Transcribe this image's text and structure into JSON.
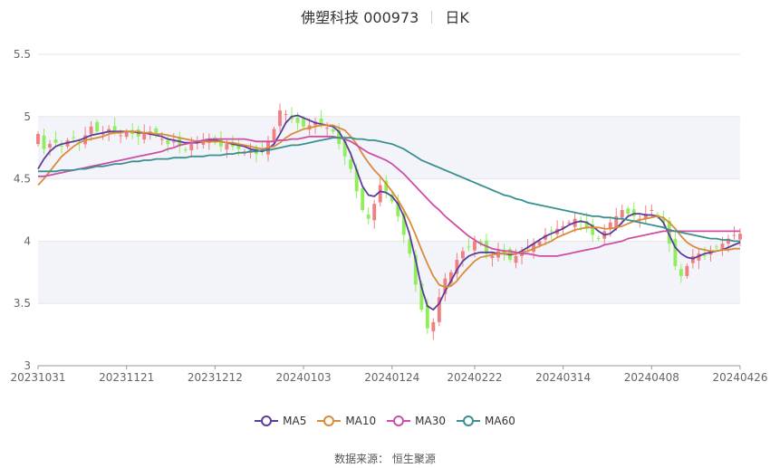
{
  "header": {
    "stock_name": "佛塑科技 000973",
    "period": "日K"
  },
  "footer": {
    "source": "数据来源： 恒生聚源"
  },
  "legend": [
    {
      "label": "MA5",
      "color": "#5b3c9b"
    },
    {
      "label": "MA10",
      "color": "#d98b3a"
    },
    {
      "label": "MA30",
      "color": "#cc4fa3"
    },
    {
      "label": "MA60",
      "color": "#3a8f8f"
    }
  ],
  "colors": {
    "up": "#f08080",
    "down": "#90ee5a",
    "grid": "#e6e6e6",
    "band": "#f3f4fa"
  },
  "chart_data": {
    "type": "candlestick",
    "y_ticks": [
      "3",
      "3.5",
      "4",
      "4.5",
      "5",
      "5.5"
    ],
    "ylim": [
      3,
      5.5
    ],
    "x_ticks": [
      "20231031",
      "20231121",
      "20231212",
      "20240103",
      "20240124",
      "20240222",
      "20240314",
      "20240408",
      "20240426"
    ],
    "n_days": 120,
    "x_tick_index": [
      0,
      15,
      30,
      45,
      60,
      74,
      89,
      104,
      119
    ],
    "closes": [
      4.86,
      4.74,
      4.78,
      4.79,
      4.76,
      4.81,
      4.83,
      4.79,
      4.85,
      4.92,
      4.88,
      4.87,
      4.9,
      4.88,
      4.85,
      4.88,
      4.86,
      4.84,
      4.87,
      4.88,
      4.85,
      4.82,
      4.78,
      4.8,
      4.76,
      4.73,
      4.78,
      4.81,
      4.8,
      4.82,
      4.79,
      4.76,
      4.78,
      4.76,
      4.74,
      4.72,
      4.73,
      4.7,
      4.72,
      4.8,
      4.9,
      5.05,
      5.02,
      4.98,
      4.95,
      4.92,
      4.93,
      4.96,
      4.94,
      4.91,
      4.88,
      4.78,
      4.68,
      4.58,
      4.4,
      4.25,
      4.18,
      4.3,
      4.45,
      4.4,
      4.32,
      4.2,
      4.05,
      3.9,
      3.65,
      3.45,
      3.3,
      3.35,
      3.55,
      3.7,
      3.75,
      3.85,
      3.92,
      3.95,
      4.0,
      3.98,
      3.9,
      3.88,
      3.92,
      3.9,
      3.85,
      3.88,
      3.92,
      3.95,
      3.98,
      4.0,
      4.05,
      4.08,
      4.1,
      4.12,
      4.15,
      4.18,
      4.15,
      4.1,
      4.05,
      4.02,
      4.08,
      4.15,
      4.2,
      4.25,
      4.22,
      4.2,
      4.18,
      4.22,
      4.25,
      4.2,
      4.15,
      3.98,
      3.8,
      3.72,
      3.8,
      3.88,
      3.9,
      3.88,
      3.92,
      3.95,
      3.98,
      4.02,
      4.05,
      4.06
    ],
    "series": [
      {
        "name": "MA5",
        "values": [
          4.58,
          4.66,
          4.72,
          4.76,
          4.78,
          4.79,
          4.8,
          4.81,
          4.83,
          4.85,
          4.86,
          4.87,
          4.88,
          4.88,
          4.88,
          4.88,
          4.88,
          4.87,
          4.87,
          4.86,
          4.85,
          4.84,
          4.82,
          4.81,
          4.8,
          4.79,
          4.79,
          4.79,
          4.8,
          4.81,
          4.81,
          4.8,
          4.79,
          4.78,
          4.77,
          4.76,
          4.74,
          4.73,
          4.72,
          4.74,
          4.78,
          4.86,
          4.95,
          5.0,
          5.01,
          4.99,
          4.97,
          4.95,
          4.94,
          4.93,
          4.92,
          4.88,
          4.8,
          4.7,
          4.57,
          4.44,
          4.37,
          4.36,
          4.4,
          4.39,
          4.36,
          4.3,
          4.2,
          4.05,
          3.85,
          3.63,
          3.48,
          3.45,
          3.5,
          3.6,
          3.68,
          3.77,
          3.84,
          3.88,
          3.9,
          3.91,
          3.91,
          3.91,
          3.9,
          3.9,
          3.89,
          3.9,
          3.92,
          3.95,
          3.98,
          4.01,
          4.04,
          4.06,
          4.08,
          4.1,
          4.13,
          4.15,
          4.16,
          4.15,
          4.12,
          4.08,
          4.05,
          4.06,
          4.1,
          4.15,
          4.2,
          4.22,
          4.22,
          4.21,
          4.21,
          4.2,
          4.15,
          4.05,
          3.95,
          3.9,
          3.87,
          3.86,
          3.88,
          3.9,
          3.91,
          3.92,
          3.93,
          3.95,
          3.97,
          3.99
        ]
      },
      {
        "name": "MA10",
        "values": [
          4.45,
          4.5,
          4.56,
          4.62,
          4.68,
          4.72,
          4.76,
          4.79,
          4.81,
          4.82,
          4.83,
          4.84,
          4.86,
          4.87,
          4.87,
          4.88,
          4.88,
          4.88,
          4.87,
          4.87,
          4.86,
          4.86,
          4.85,
          4.84,
          4.83,
          4.82,
          4.81,
          4.8,
          4.8,
          4.8,
          4.8,
          4.8,
          4.79,
          4.79,
          4.78,
          4.77,
          4.76,
          4.75,
          4.74,
          4.75,
          4.76,
          4.79,
          4.83,
          4.86,
          4.88,
          4.9,
          4.91,
          4.92,
          4.93,
          4.93,
          4.93,
          4.91,
          4.89,
          4.84,
          4.78,
          4.7,
          4.63,
          4.57,
          4.52,
          4.46,
          4.4,
          4.33,
          4.25,
          4.16,
          4.05,
          3.93,
          3.82,
          3.72,
          3.65,
          3.63,
          3.64,
          3.68,
          3.74,
          3.79,
          3.84,
          3.87,
          3.88,
          3.89,
          3.9,
          3.9,
          3.9,
          3.9,
          3.91,
          3.92,
          3.94,
          3.96,
          3.98,
          4.0,
          4.03,
          4.05,
          4.07,
          4.09,
          4.1,
          4.11,
          4.11,
          4.11,
          4.1,
          4.1,
          4.11,
          4.12,
          4.14,
          4.16,
          4.17,
          4.18,
          4.19,
          4.2,
          4.19,
          4.15,
          4.1,
          4.04,
          3.99,
          3.96,
          3.94,
          3.93,
          3.92,
          3.92,
          3.93,
          3.93,
          3.94,
          3.94
        ]
      },
      {
        "name": "MA30",
        "values": [
          4.52,
          4.52,
          4.53,
          4.54,
          4.55,
          4.56,
          4.57,
          4.58,
          4.59,
          4.6,
          4.61,
          4.62,
          4.63,
          4.64,
          4.65,
          4.66,
          4.67,
          4.68,
          4.69,
          4.7,
          4.71,
          4.72,
          4.74,
          4.75,
          4.77,
          4.78,
          4.79,
          4.8,
          4.81,
          4.82,
          4.82,
          4.82,
          4.82,
          4.82,
          4.82,
          4.82,
          4.81,
          4.8,
          4.8,
          4.8,
          4.8,
          4.81,
          4.81,
          4.82,
          4.82,
          4.83,
          4.84,
          4.84,
          4.84,
          4.84,
          4.84,
          4.83,
          4.82,
          4.8,
          4.77,
          4.74,
          4.71,
          4.69,
          4.67,
          4.65,
          4.62,
          4.58,
          4.54,
          4.49,
          4.44,
          4.39,
          4.34,
          4.29,
          4.25,
          4.2,
          4.16,
          4.12,
          4.08,
          4.04,
          4.01,
          3.98,
          3.96,
          3.94,
          3.93,
          3.92,
          3.92,
          3.91,
          3.9,
          3.9,
          3.89,
          3.88,
          3.88,
          3.88,
          3.88,
          3.89,
          3.9,
          3.91,
          3.92,
          3.93,
          3.94,
          3.95,
          3.97,
          3.98,
          3.99,
          4.0,
          4.02,
          4.03,
          4.04,
          4.05,
          4.06,
          4.07,
          4.08,
          4.08,
          4.08,
          4.08,
          4.08,
          4.08,
          4.08,
          4.08,
          4.08,
          4.08,
          4.08,
          4.08,
          4.08,
          4.08
        ]
      },
      {
        "name": "MA60",
        "values": [
          4.56,
          4.56,
          4.56,
          4.56,
          4.57,
          4.57,
          4.57,
          4.58,
          4.58,
          4.59,
          4.6,
          4.6,
          4.61,
          4.62,
          4.62,
          4.63,
          4.64,
          4.64,
          4.65,
          4.65,
          4.66,
          4.66,
          4.66,
          4.67,
          4.67,
          4.67,
          4.68,
          4.68,
          4.68,
          4.69,
          4.69,
          4.69,
          4.7,
          4.7,
          4.71,
          4.71,
          4.72,
          4.72,
          4.73,
          4.73,
          4.74,
          4.75,
          4.76,
          4.77,
          4.77,
          4.78,
          4.79,
          4.8,
          4.81,
          4.82,
          4.83,
          4.83,
          4.83,
          4.83,
          4.82,
          4.82,
          4.81,
          4.81,
          4.8,
          4.79,
          4.78,
          4.76,
          4.74,
          4.71,
          4.68,
          4.65,
          4.63,
          4.61,
          4.59,
          4.57,
          4.55,
          4.53,
          4.51,
          4.49,
          4.47,
          4.45,
          4.43,
          4.41,
          4.39,
          4.37,
          4.36,
          4.34,
          4.33,
          4.31,
          4.3,
          4.29,
          4.28,
          4.27,
          4.26,
          4.25,
          4.24,
          4.23,
          4.22,
          4.21,
          4.2,
          4.2,
          4.19,
          4.19,
          4.18,
          4.18,
          4.17,
          4.16,
          4.15,
          4.14,
          4.13,
          4.12,
          4.11,
          4.09,
          4.08,
          4.07,
          4.06,
          4.05,
          4.04,
          4.03,
          4.02,
          4.02,
          4.01,
          4.01,
          4.0,
          4.0
        ]
      }
    ]
  }
}
